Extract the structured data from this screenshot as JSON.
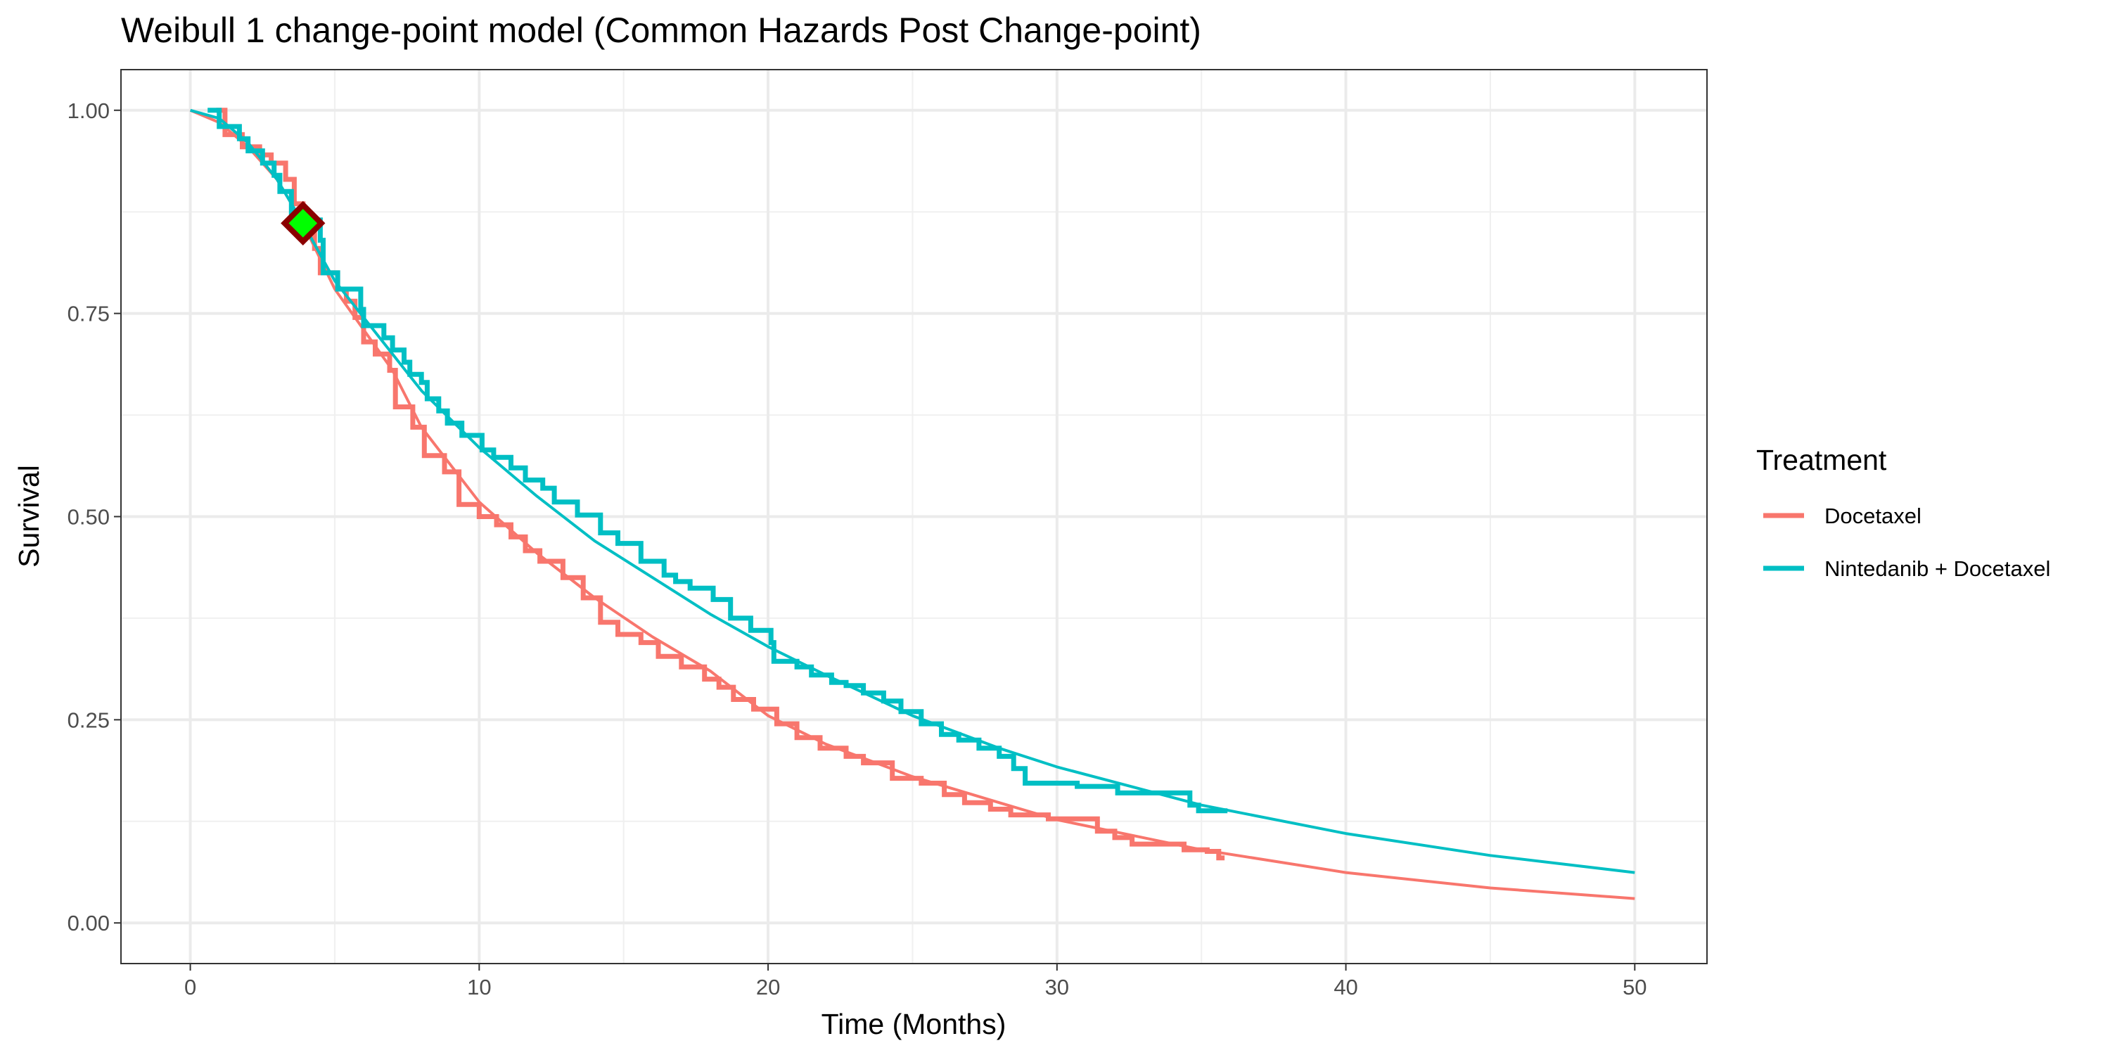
{
  "chart_data": {
    "type": "line",
    "title": "Weibull 1 change-point model (Common Hazards Post Change-point)",
    "xlabel": "Time (Months)",
    "ylabel": "Survival",
    "xlim": [
      -2.4,
      52.5
    ],
    "ylim": [
      -0.05,
      1.05
    ],
    "x_ticks": [
      0,
      10,
      20,
      30,
      40,
      50
    ],
    "x_tick_labels": [
      "0",
      "10",
      "20",
      "30",
      "40",
      "50"
    ],
    "y_ticks": [
      0,
      0.25,
      0.5,
      0.75,
      1
    ],
    "y_tick_labels": [
      "0.00",
      "0.25",
      "0.50",
      "0.75",
      "1.00"
    ],
    "grid": true,
    "legend": {
      "title": "Treatment",
      "position": "right",
      "entries": [
        "Docetaxel",
        "Nintedanib + Docetaxel"
      ]
    },
    "change_point": {
      "time": 3.9,
      "survival": 0.861,
      "fill": "#00ff00",
      "stroke": "#8b0000"
    },
    "series": [
      {
        "name": "Docetaxel",
        "color": "#F8766D",
        "fitted_curve": [
          [
            0,
            1.0
          ],
          [
            1,
            0.985
          ],
          [
            2,
            0.955
          ],
          [
            3,
            0.915
          ],
          [
            3.9,
            0.861
          ],
          [
            5,
            0.78
          ],
          [
            7,
            0.68
          ],
          [
            8,
            0.61
          ],
          [
            10,
            0.518
          ],
          [
            12,
            0.455
          ],
          [
            14,
            0.4
          ],
          [
            16,
            0.352
          ],
          [
            18,
            0.31
          ],
          [
            20,
            0.255
          ],
          [
            22,
            0.22
          ],
          [
            25,
            0.18
          ],
          [
            28,
            0.148
          ],
          [
            30,
            0.127
          ],
          [
            35,
            0.09
          ],
          [
            40,
            0.062
          ],
          [
            45,
            0.043
          ],
          [
            50,
            0.03
          ]
        ],
        "km_steps": [
          [
            0.9,
            1.0
          ],
          [
            1.2,
            0.97
          ],
          [
            1.8,
            0.955
          ],
          [
            2.4,
            0.945
          ],
          [
            2.8,
            0.935
          ],
          [
            3.3,
            0.915
          ],
          [
            3.6,
            0.885
          ],
          [
            3.9,
            0.86
          ],
          [
            4.3,
            0.83
          ],
          [
            4.5,
            0.8
          ],
          [
            5.1,
            0.78
          ],
          [
            5.4,
            0.765
          ],
          [
            5.7,
            0.745
          ],
          [
            6.0,
            0.715
          ],
          [
            6.4,
            0.7
          ],
          [
            6.9,
            0.68
          ],
          [
            7.1,
            0.635
          ],
          [
            7.7,
            0.61
          ],
          [
            8.1,
            0.575
          ],
          [
            8.8,
            0.555
          ],
          [
            9.3,
            0.515
          ],
          [
            10.0,
            0.5
          ],
          [
            10.6,
            0.49
          ],
          [
            11.1,
            0.475
          ],
          [
            11.6,
            0.458
          ],
          [
            12.1,
            0.445
          ],
          [
            12.9,
            0.425
          ],
          [
            13.6,
            0.4
          ],
          [
            14.2,
            0.37
          ],
          [
            14.8,
            0.355
          ],
          [
            15.6,
            0.345
          ],
          [
            16.2,
            0.328
          ],
          [
            17.0,
            0.315
          ],
          [
            17.8,
            0.3
          ],
          [
            18.3,
            0.29
          ],
          [
            18.8,
            0.275
          ],
          [
            19.5,
            0.263
          ],
          [
            20.3,
            0.245
          ],
          [
            21.0,
            0.228
          ],
          [
            21.8,
            0.215
          ],
          [
            22.7,
            0.205
          ],
          [
            23.3,
            0.197
          ],
          [
            24.3,
            0.178
          ],
          [
            25.3,
            0.172
          ],
          [
            26.1,
            0.158
          ],
          [
            26.8,
            0.148
          ],
          [
            27.7,
            0.14
          ],
          [
            28.4,
            0.133
          ],
          [
            29.7,
            0.128
          ],
          [
            31.4,
            0.113
          ],
          [
            32.0,
            0.105
          ],
          [
            32.6,
            0.097
          ],
          [
            34.4,
            0.09
          ],
          [
            35.2,
            0.088
          ],
          [
            35.6,
            0.08
          ],
          [
            35.8,
            0.08
          ]
        ]
      },
      {
        "name": "Nintedanib + Docetaxel",
        "color": "#00BFC4",
        "fitted_curve": [
          [
            0,
            1.0
          ],
          [
            1,
            0.99
          ],
          [
            2,
            0.96
          ],
          [
            3,
            0.915
          ],
          [
            3.9,
            0.861
          ],
          [
            5,
            0.79
          ],
          [
            7,
            0.7
          ],
          [
            8,
            0.655
          ],
          [
            10,
            0.585
          ],
          [
            12,
            0.525
          ],
          [
            14,
            0.47
          ],
          [
            16,
            0.425
          ],
          [
            18,
            0.38
          ],
          [
            20,
            0.34
          ],
          [
            22,
            0.305
          ],
          [
            25,
            0.255
          ],
          [
            28,
            0.215
          ],
          [
            30,
            0.192
          ],
          [
            35,
            0.145
          ],
          [
            40,
            0.11
          ],
          [
            45,
            0.083
          ],
          [
            50,
            0.062
          ]
        ],
        "km_steps": [
          [
            0.6,
            1.0
          ],
          [
            1.0,
            0.98
          ],
          [
            1.7,
            0.965
          ],
          [
            2.0,
            0.95
          ],
          [
            2.5,
            0.935
          ],
          [
            2.9,
            0.92
          ],
          [
            3.1,
            0.9
          ],
          [
            3.5,
            0.87
          ],
          [
            3.9,
            0.865
          ],
          [
            4.5,
            0.84
          ],
          [
            4.6,
            0.8
          ],
          [
            5.1,
            0.78
          ],
          [
            5.9,
            0.755
          ],
          [
            6.0,
            0.735
          ],
          [
            6.7,
            0.72
          ],
          [
            7.0,
            0.705
          ],
          [
            7.4,
            0.69
          ],
          [
            7.6,
            0.675
          ],
          [
            8.0,
            0.665
          ],
          [
            8.2,
            0.645
          ],
          [
            8.6,
            0.63
          ],
          [
            8.9,
            0.615
          ],
          [
            9.4,
            0.6
          ],
          [
            10.1,
            0.582
          ],
          [
            10.5,
            0.573
          ],
          [
            11.1,
            0.56
          ],
          [
            11.6,
            0.545
          ],
          [
            12.2,
            0.535
          ],
          [
            12.6,
            0.518
          ],
          [
            13.4,
            0.502
          ],
          [
            14.2,
            0.48
          ],
          [
            14.8,
            0.467
          ],
          [
            15.6,
            0.445
          ],
          [
            16.4,
            0.428
          ],
          [
            16.8,
            0.42
          ],
          [
            17.3,
            0.412
          ],
          [
            18.1,
            0.398
          ],
          [
            18.7,
            0.375
          ],
          [
            19.4,
            0.36
          ],
          [
            20.1,
            0.345
          ],
          [
            20.2,
            0.322
          ],
          [
            21.0,
            0.315
          ],
          [
            21.5,
            0.305
          ],
          [
            22.2,
            0.296
          ],
          [
            22.7,
            0.292
          ],
          [
            23.3,
            0.283
          ],
          [
            24.0,
            0.273
          ],
          [
            24.6,
            0.26
          ],
          [
            25.3,
            0.245
          ],
          [
            26.0,
            0.232
          ],
          [
            26.6,
            0.225
          ],
          [
            27.3,
            0.215
          ],
          [
            28.0,
            0.205
          ],
          [
            28.5,
            0.19
          ],
          [
            28.9,
            0.172
          ],
          [
            30.7,
            0.168
          ],
          [
            32.1,
            0.16
          ],
          [
            34.6,
            0.145
          ],
          [
            34.9,
            0.138
          ],
          [
            35.9,
            0.138
          ]
        ]
      }
    ]
  }
}
